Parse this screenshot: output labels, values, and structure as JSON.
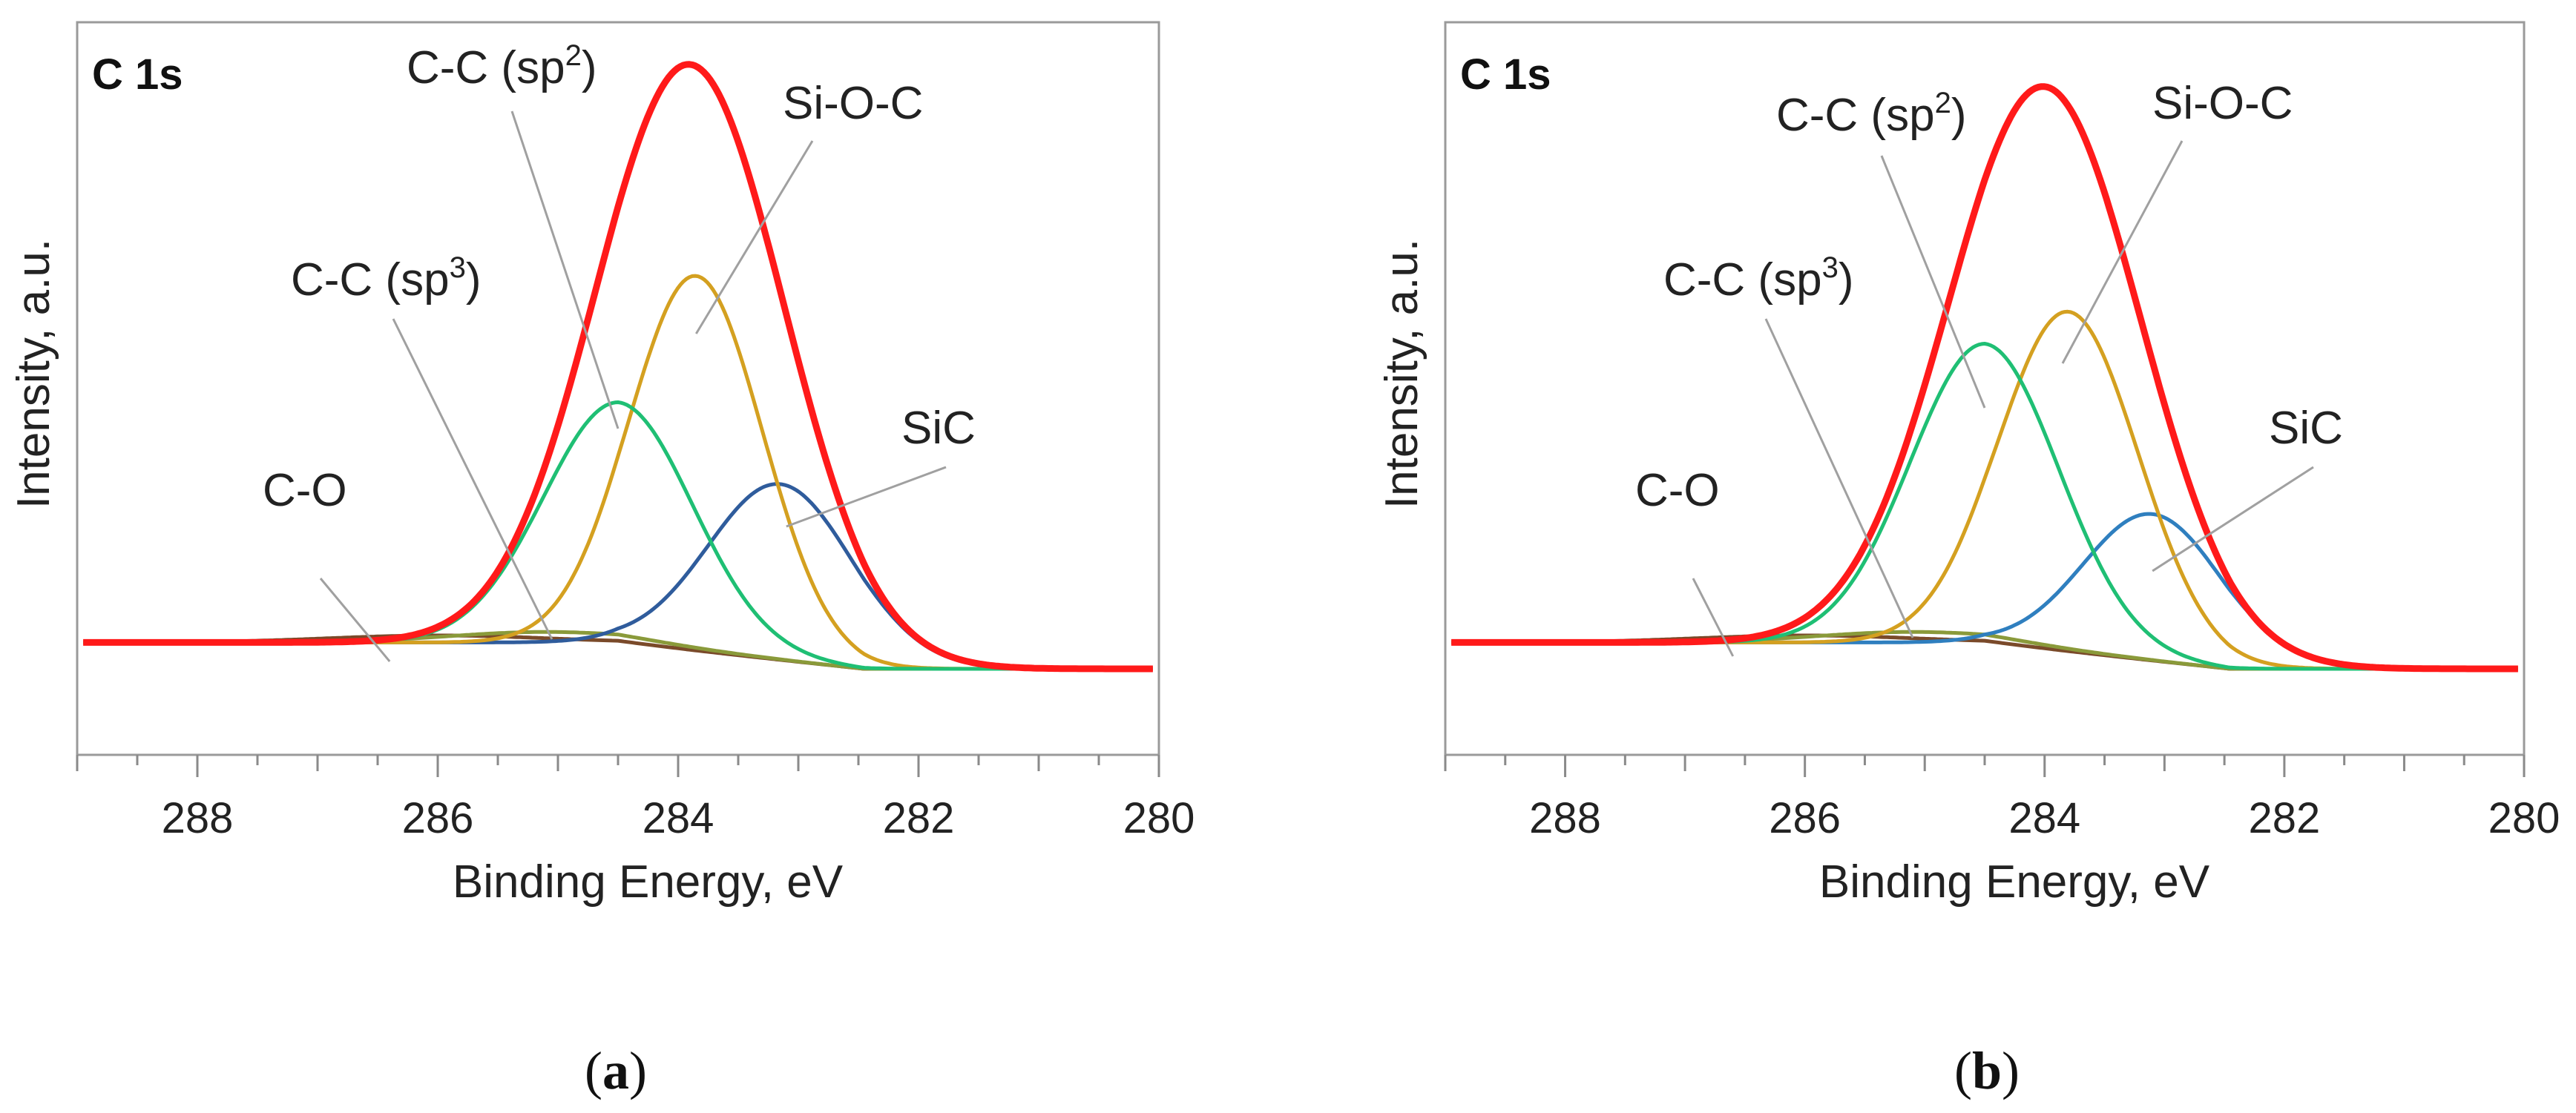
{
  "chart_data": [
    {
      "type": "line",
      "panel_label": "(a)",
      "title": "C 1s",
      "xlabel": "Binding Energy, eV",
      "ylabel": "Intensity, a.u.",
      "xlim": [
        289,
        280
      ],
      "x_reversed": true,
      "xticks": [
        288,
        286,
        284,
        282,
        280
      ],
      "ylim": [
        0,
        1.05
      ],
      "grid": false,
      "colors": {
        "envelope": "#ff1a1a",
        "sp3": "#8a9a3a",
        "sp2": "#1fbf74",
        "sioc": "#d4a020",
        "sic": "#2f5c9c",
        "co": "#7a4a2a"
      },
      "series": [
        {
          "name": "",
          "role": "envelope",
          "center": 283.9,
          "amplitude": 1.0,
          "sigma": 0.78
        },
        {
          "name": "C-C (sp3)",
          "role": "sp3",
          "center": 285.1,
          "amplitude": 0.018,
          "sigma": 0.8
        },
        {
          "name": "C-C (sp2)",
          "role": "sp2",
          "center": 284.5,
          "amplitude": 0.41,
          "sigma": 0.62
        },
        {
          "name": "Si-O-C",
          "role": "sioc",
          "center": 283.85,
          "amplitude": 0.64,
          "sigma": 0.55
        },
        {
          "name": "SiC",
          "role": "sic",
          "center": 283.15,
          "amplitude": 0.3,
          "sigma": 0.6
        },
        {
          "name": "C-O",
          "role": "co",
          "center": 286.0,
          "amplitude": 0.012,
          "sigma": 0.9
        }
      ],
      "annotations": [
        {
          "label": "C-O",
          "target_x": 286.4
        },
        {
          "label": "C-C (sp3)",
          "target_x": 285.05
        },
        {
          "label": "C-C (sp2)",
          "target_x": 284.5
        },
        {
          "label": "Si-O-C",
          "target_x": 283.85
        },
        {
          "label": "SiC",
          "target_x": 283.1
        }
      ]
    },
    {
      "type": "line",
      "panel_label": "(b)",
      "title": "C 1s",
      "xlabel": "Binding Energy, eV",
      "ylabel": "Intensity, a.u.",
      "xlim": [
        289,
        280
      ],
      "x_reversed": true,
      "xticks": [
        288,
        286,
        284,
        282,
        280
      ],
      "ylim": [
        0,
        1.05
      ],
      "grid": false,
      "colors": {
        "envelope": "#ff1a1a",
        "sp3": "#8a9a3a",
        "sp2": "#1fbf74",
        "sioc": "#d4a020",
        "sic": "#2f7fbf",
        "co": "#7a4a2a"
      },
      "series": [
        {
          "name": "",
          "role": "envelope",
          "center": 284.0,
          "amplitude": 0.96,
          "sigma": 0.8
        },
        {
          "name": "C-C (sp3)",
          "role": "sp3",
          "center": 285.1,
          "amplitude": 0.018,
          "sigma": 0.8
        },
        {
          "name": "C-C (sp2)",
          "role": "sp2",
          "center": 284.5,
          "amplitude": 0.51,
          "sigma": 0.62
        },
        {
          "name": "Si-O-C",
          "role": "sioc",
          "center": 283.8,
          "amplitude": 0.58,
          "sigma": 0.58
        },
        {
          "name": "SiC",
          "role": "sic",
          "center": 283.1,
          "amplitude": 0.25,
          "sigma": 0.58
        },
        {
          "name": "C-O",
          "role": "co",
          "center": 286.0,
          "amplitude": 0.012,
          "sigma": 0.9
        }
      ],
      "annotations": [
        {
          "label": "C-O",
          "target_x": 286.6
        },
        {
          "label": "C-C (sp3)",
          "target_x": 285.1
        },
        {
          "label": "C-C (sp2)",
          "target_x": 284.5
        },
        {
          "label": "Si-O-C",
          "target_x": 283.85
        },
        {
          "label": "SiC",
          "target_x": 283.1
        }
      ]
    }
  ]
}
